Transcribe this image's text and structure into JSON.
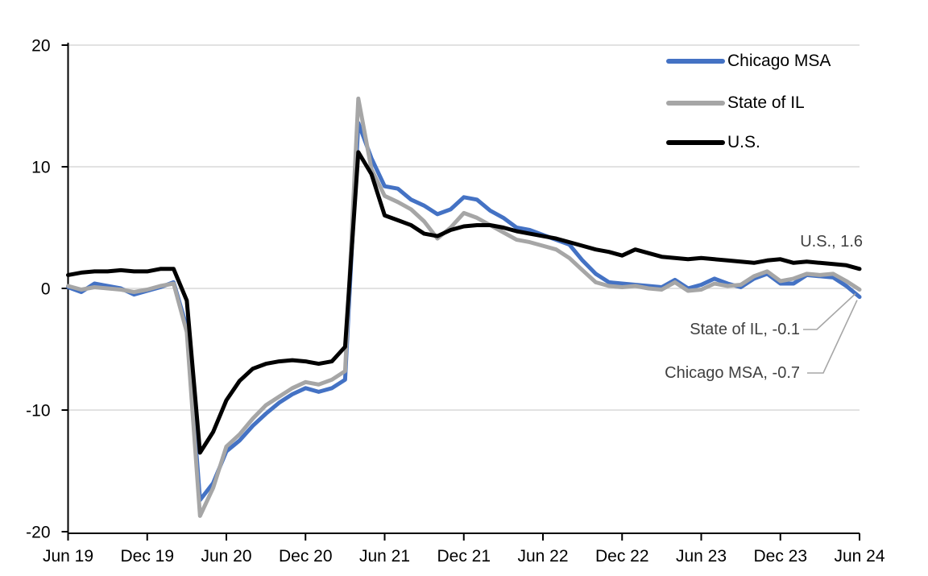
{
  "chart_data": {
    "type": "line",
    "title": "",
    "xlabel": "",
    "ylabel": "",
    "ylim": [
      -20,
      20
    ],
    "y_ticks": [
      20,
      10,
      0,
      -10,
      -20
    ],
    "x_tick_labels": [
      "Jun 19",
      "Dec 19",
      "Jun 20",
      "Dec 20",
      "Jun 21",
      "Dec 21",
      "Jun 22",
      "Dec 22",
      "Jun 23",
      "Dec 23",
      "Jun 24"
    ],
    "x_tick_month_indices": [
      0,
      6,
      12,
      18,
      24,
      30,
      36,
      42,
      48,
      54,
      60
    ],
    "grid": "horizontal",
    "legend_position": "top-right",
    "months": [
      "Jun 19",
      "Jul 19",
      "Aug 19",
      "Sep 19",
      "Oct 19",
      "Nov 19",
      "Dec 19",
      "Jan 20",
      "Feb 20",
      "Mar 20",
      "Apr 20",
      "May 20",
      "Jun 20",
      "Jul 20",
      "Aug 20",
      "Sep 20",
      "Oct 20",
      "Nov 20",
      "Dec 20",
      "Jan 21",
      "Feb 21",
      "Mar 21",
      "Apr 21",
      "May 21",
      "Jun 21",
      "Jul 21",
      "Aug 21",
      "Sep 21",
      "Oct 21",
      "Nov 21",
      "Dec 21",
      "Jan 22",
      "Feb 22",
      "Mar 22",
      "Apr 22",
      "May 22",
      "Jun 22",
      "Jul 22",
      "Aug 22",
      "Sep 22",
      "Oct 22",
      "Nov 22",
      "Dec 22",
      "Jan 23",
      "Feb 23",
      "Mar 23",
      "Apr 23",
      "May 23",
      "Jun 23",
      "Jul 23",
      "Aug 23",
      "Sep 23",
      "Oct 23",
      "Nov 23",
      "Dec 23",
      "Jan 24",
      "Feb 24",
      "Mar 24",
      "Apr 24",
      "May 24",
      "Jun 24"
    ],
    "series": [
      {
        "name": "Chicago MSA",
        "color": "#4472C4",
        "values": [
          0.1,
          -0.3,
          0.4,
          0.2,
          0,
          -0.5,
          -0.2,
          0.1,
          0.5,
          -3.2,
          -17.4,
          -16,
          -13.4,
          -12.5,
          -11.3,
          -10.3,
          -9.4,
          -8.7,
          -8.2,
          -8.5,
          -8.2,
          -7.5,
          13.6,
          10.7,
          8.4,
          8.2,
          7.3,
          6.8,
          6.1,
          6.5,
          7.5,
          7.3,
          6.4,
          5.8,
          5,
          4.8,
          4.4,
          4,
          3.6,
          2.3,
          1.2,
          0.5,
          0.4,
          0.3,
          0.2,
          0.1,
          0.7,
          0,
          0.3,
          0.8,
          0.4,
          0.1,
          0.8,
          1.2,
          0.4,
          0.4,
          1.1,
          1,
          0.9,
          0.2,
          -0.7
        ]
      },
      {
        "name": "State of IL",
        "color": "#A6A6A6",
        "values": [
          0.2,
          -0.1,
          0.1,
          0,
          -0.1,
          -0.3,
          -0.1,
          0.2,
          0.4,
          -3.6,
          -18.7,
          -16.4,
          -13,
          -12,
          -10.7,
          -9.6,
          -8.9,
          -8.2,
          -7.7,
          -7.9,
          -7.5,
          -6.8,
          15.6,
          9.8,
          7.6,
          7.1,
          6.5,
          5.5,
          4.1,
          5,
          6.2,
          5.8,
          5.2,
          4.6,
          4,
          3.8,
          3.5,
          3.2,
          2.5,
          1.5,
          0.5,
          0.2,
          0.1,
          0.2,
          0,
          -0.1,
          0.5,
          -0.2,
          -0.1,
          0.4,
          0.2,
          0.3,
          1,
          1.4,
          0.6,
          0.8,
          1.2,
          1.1,
          1.2,
          0.6,
          -0.1
        ]
      },
      {
        "name": "U.S.",
        "color": "#000000",
        "values": [
          1.1,
          1.3,
          1.4,
          1.4,
          1.5,
          1.4,
          1.4,
          1.6,
          1.6,
          -1,
          -13.5,
          -11.8,
          -9.2,
          -7.6,
          -6.6,
          -6.2,
          -6,
          -5.9,
          -6,
          -6.2,
          -6,
          -4.8,
          11.2,
          9.4,
          6,
          5.6,
          5.2,
          4.5,
          4.3,
          4.8,
          5.1,
          5.2,
          5.2,
          5,
          4.7,
          4.5,
          4.3,
          4.1,
          3.8,
          3.5,
          3.2,
          3,
          2.7,
          3.2,
          2.9,
          2.6,
          2.5,
          2.4,
          2.5,
          2.4,
          2.3,
          2.2,
          2.1,
          2.3,
          2.4,
          2.1,
          2.2,
          2.1,
          2,
          1.9,
          1.6
        ]
      }
    ],
    "end_labels": [
      {
        "series": "U.S.",
        "value": 1.6,
        "text": "U.S., 1.6"
      },
      {
        "series": "State of IL",
        "value": -0.1,
        "text": "State of IL, -0.1"
      },
      {
        "series": "Chicago MSA",
        "value": -0.7,
        "text": "Chicago MSA, -0.7"
      }
    ]
  },
  "colors": {
    "background": "#FFFFFF",
    "gridline": "#D9D9D9",
    "axis": "#000000",
    "annotation_text": "#404040",
    "leader_line": "#A6A6A6"
  }
}
